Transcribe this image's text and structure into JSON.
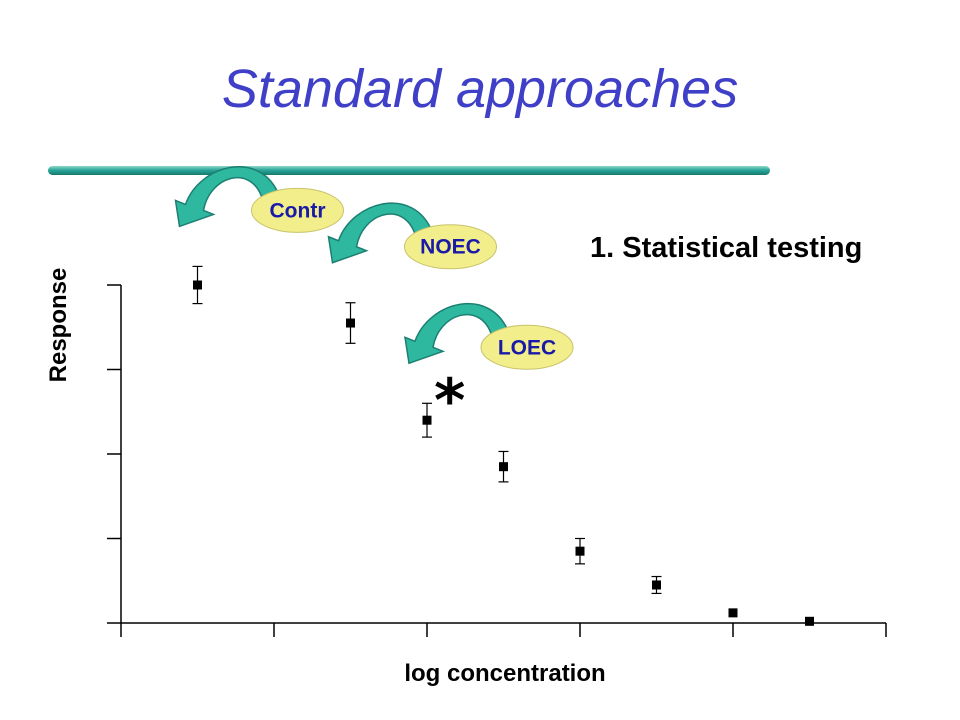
{
  "slide": {
    "title": "Standard approaches",
    "subtitle": "1. Statistical testing",
    "significance_marker": "*"
  },
  "callouts": [
    {
      "label": "Contr",
      "points_to_index": 0
    },
    {
      "label": "NOEC",
      "points_to_index": 1
    },
    {
      "label": "LOEC",
      "points_to_index": 2
    }
  ],
  "colors": {
    "title": "#3f3fc8",
    "arrow_fill": "#2fb8a0",
    "bubble_fill": "#f2ee8c",
    "bubble_text": "#1a1aa8"
  },
  "chart_data": {
    "type": "scatter",
    "xlabel": "log concentration",
    "ylabel": "Response",
    "xlim": [
      0,
      10
    ],
    "ylim": [
      0,
      4
    ],
    "x_ticks": [
      0,
      2,
      4,
      6,
      8,
      10
    ],
    "y_ticks": [
      0,
      1,
      2,
      3,
      4
    ],
    "show_tick_labels": false,
    "grid": false,
    "points": [
      {
        "x": 1.0,
        "y": 4.0,
        "err": 0.22
      },
      {
        "x": 3.0,
        "y": 3.55,
        "err": 0.24
      },
      {
        "x": 4.0,
        "y": 2.4,
        "err": 0.2
      },
      {
        "x": 5.0,
        "y": 1.85,
        "err": 0.18
      },
      {
        "x": 6.0,
        "y": 0.85,
        "err": 0.15
      },
      {
        "x": 7.0,
        "y": 0.45,
        "err": 0.1
      },
      {
        "x": 8.0,
        "y": 0.12,
        "err": 0
      },
      {
        "x": 9.0,
        "y": 0.02,
        "err": 0
      }
    ]
  }
}
